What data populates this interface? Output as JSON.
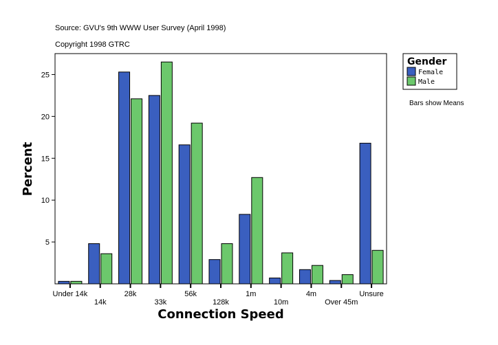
{
  "chart_data": {
    "type": "bar",
    "source": "Source: GVU's 9th WWW User Survey (April 1998)",
    "copyright": "Copyright 1998 GTRC",
    "xlabel": "Connection Speed",
    "ylabel": "Percent",
    "ylim": [
      0,
      27.5
    ],
    "yticks": [
      5,
      10,
      15,
      20,
      25
    ],
    "grid": false,
    "legend_position": "right",
    "legend_title": "Gender",
    "note": "Bars show Means",
    "categories": [
      "Under 14k",
      "14k",
      "28k",
      "33k",
      "56k",
      "128k",
      "1m",
      "10m",
      "4m",
      "Over 45m",
      "Unsure"
    ],
    "series": [
      {
        "name": "Female",
        "color": "#3a5fbf",
        "values": [
          0.3,
          4.8,
          25.3,
          22.5,
          16.6,
          2.9,
          8.3,
          0.7,
          1.7,
          0.4,
          16.8
        ]
      },
      {
        "name": "Male",
        "color": "#6cc86c",
        "values": [
          0.3,
          3.6,
          22.1,
          26.5,
          19.2,
          4.8,
          12.7,
          3.7,
          2.2,
          1.1,
          4.0
        ]
      }
    ]
  }
}
